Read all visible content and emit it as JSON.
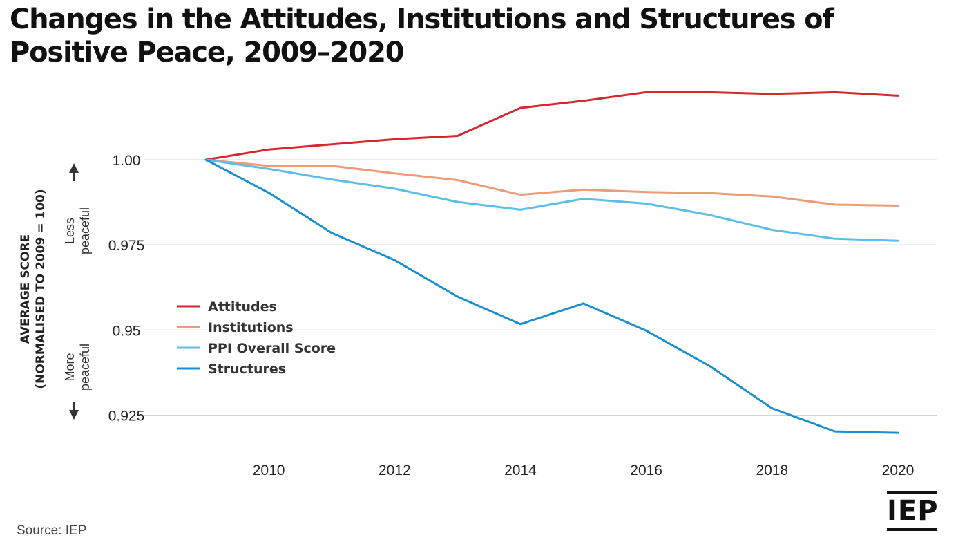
{
  "title": "Changes in the Attitudes, Institutions and Structures of Positive Peace, 2009–2020",
  "source": "Source: IEP",
  "logo_text": "IEP",
  "chart_data": {
    "type": "line",
    "title": "Changes in the Attitudes, Institutions and Structures of Positive Peace, 2009–2020",
    "ylabel": "AVERAGE SCORE",
    "ylabel_sub": "(NORMALISED TO 2009 = 100)",
    "direction_up": [
      "Less",
      "peaceful"
    ],
    "direction_down": [
      "More",
      "peaceful"
    ],
    "x": [
      2009,
      2010,
      2011,
      2012,
      2013,
      2014,
      2015,
      2016,
      2017,
      2018,
      2019,
      2020
    ],
    "x_ticks": [
      2010,
      2012,
      2014,
      2016,
      2018,
      2020
    ],
    "x_tick_labels": [
      "2010",
      "2012",
      "2014",
      "2016",
      "2018",
      "2020"
    ],
    "y_ticks": [
      0.925,
      0.95,
      0.975,
      1.0
    ],
    "y_tick_labels": [
      "0.925",
      "0.95",
      "0.975",
      "1.00"
    ],
    "ylim": [
      0.919,
      1.0205
    ],
    "grid": true,
    "legend_position": "left",
    "series": [
      {
        "name": "Attitudes",
        "color": "#d7262e",
        "values": [
          1.0,
          1.003,
          1.0045,
          1.006,
          1.007,
          1.0152,
          1.0173,
          1.0198,
          1.0198,
          1.0193,
          1.0198,
          1.0188
        ]
      },
      {
        "name": "Institutions",
        "color": "#ee9a78",
        "values": [
          1.0,
          0.9982,
          0.9982,
          0.996,
          0.994,
          0.9897,
          0.9912,
          0.9905,
          0.9902,
          0.9892,
          0.9868,
          0.9865
        ]
      },
      {
        "name": "PPI Overall Score",
        "color": "#5bbde8",
        "values": [
          1.0,
          0.9973,
          0.9942,
          0.9915,
          0.9876,
          0.9853,
          0.9885,
          0.9871,
          0.9838,
          0.9794,
          0.9768,
          0.9762
        ]
      },
      {
        "name": "Structures",
        "color": "#1b8fcd",
        "values": [
          1.0,
          0.9903,
          0.9785,
          0.9705,
          0.9598,
          0.9517,
          0.9578,
          0.9498,
          0.9395,
          0.927,
          0.9202,
          0.9198
        ]
      }
    ]
  }
}
